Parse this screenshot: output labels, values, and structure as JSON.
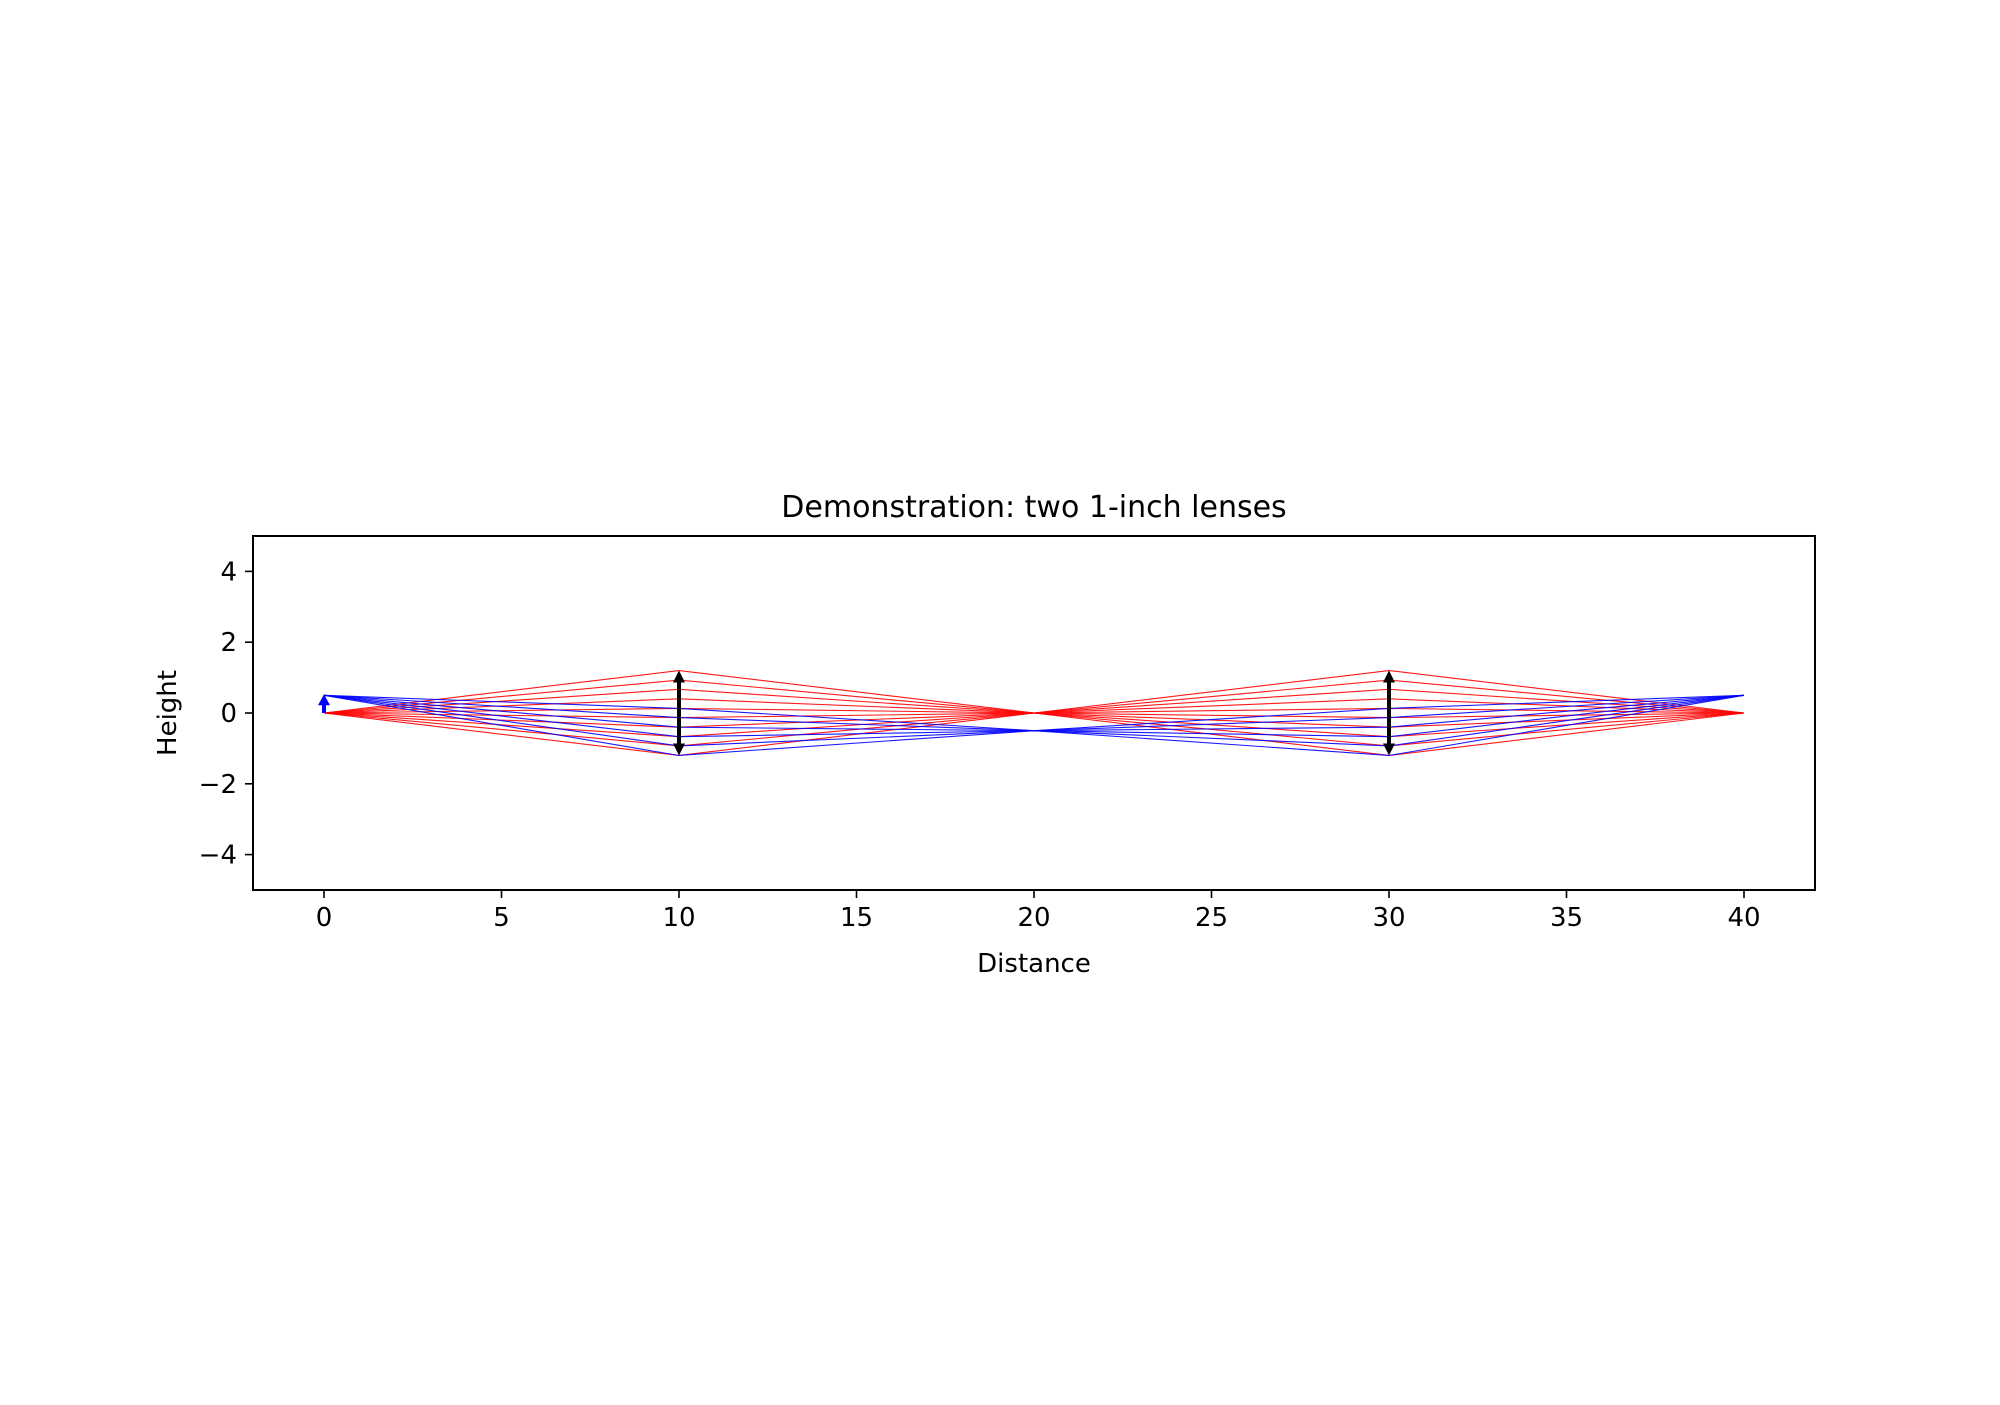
{
  "chart_data": {
    "type": "line",
    "title": "Demonstration: two 1-inch lenses",
    "xlabel": "Distance",
    "ylabel": "Height",
    "xlim": [
      -2,
      42
    ],
    "ylim": [
      -5,
      5
    ],
    "xticks": [
      0,
      5,
      10,
      15,
      20,
      25,
      30,
      35,
      40
    ],
    "xtick_labels": [
      "0",
      "5",
      "10",
      "15",
      "20",
      "25",
      "30",
      "35",
      "40"
    ],
    "yticks": [
      -4,
      -2,
      0,
      2,
      4
    ],
    "ytick_labels": [
      "−4",
      "−2",
      "0",
      "2",
      "4"
    ],
    "grid": false,
    "lenses": [
      {
        "x": 10,
        "half_aperture": 1.2
      },
      {
        "x": 30,
        "half_aperture": 1.2
      }
    ],
    "objects": [
      {
        "x": 0,
        "height": 0.5
      }
    ],
    "series": [
      {
        "color": "#ff0000",
        "description_points": "rays from on-axis point",
        "x": [
          0,
          10,
          20,
          30,
          40
        ],
        "ray_heights_at_lens": [
          -1.2,
          -0.93,
          -0.67,
          -0.4,
          -0.13,
          0.13,
          0.4,
          0.67,
          0.93,
          1.2
        ],
        "y_at_x0": 0,
        "y_at_x20": 0,
        "y_at_x40": 0
      },
      {
        "color": "#0000ff",
        "description_points": "rays from object tip",
        "x": [
          0,
          10,
          20,
          30,
          40
        ],
        "ray_heights_at_lens": [
          -1.2,
          -0.93,
          -0.67,
          -0.4,
          -0.13,
          0.13
        ],
        "y_at_x0": 0.5,
        "y_at_x20": -0.5,
        "y_at_x40": 0.5
      }
    ]
  }
}
